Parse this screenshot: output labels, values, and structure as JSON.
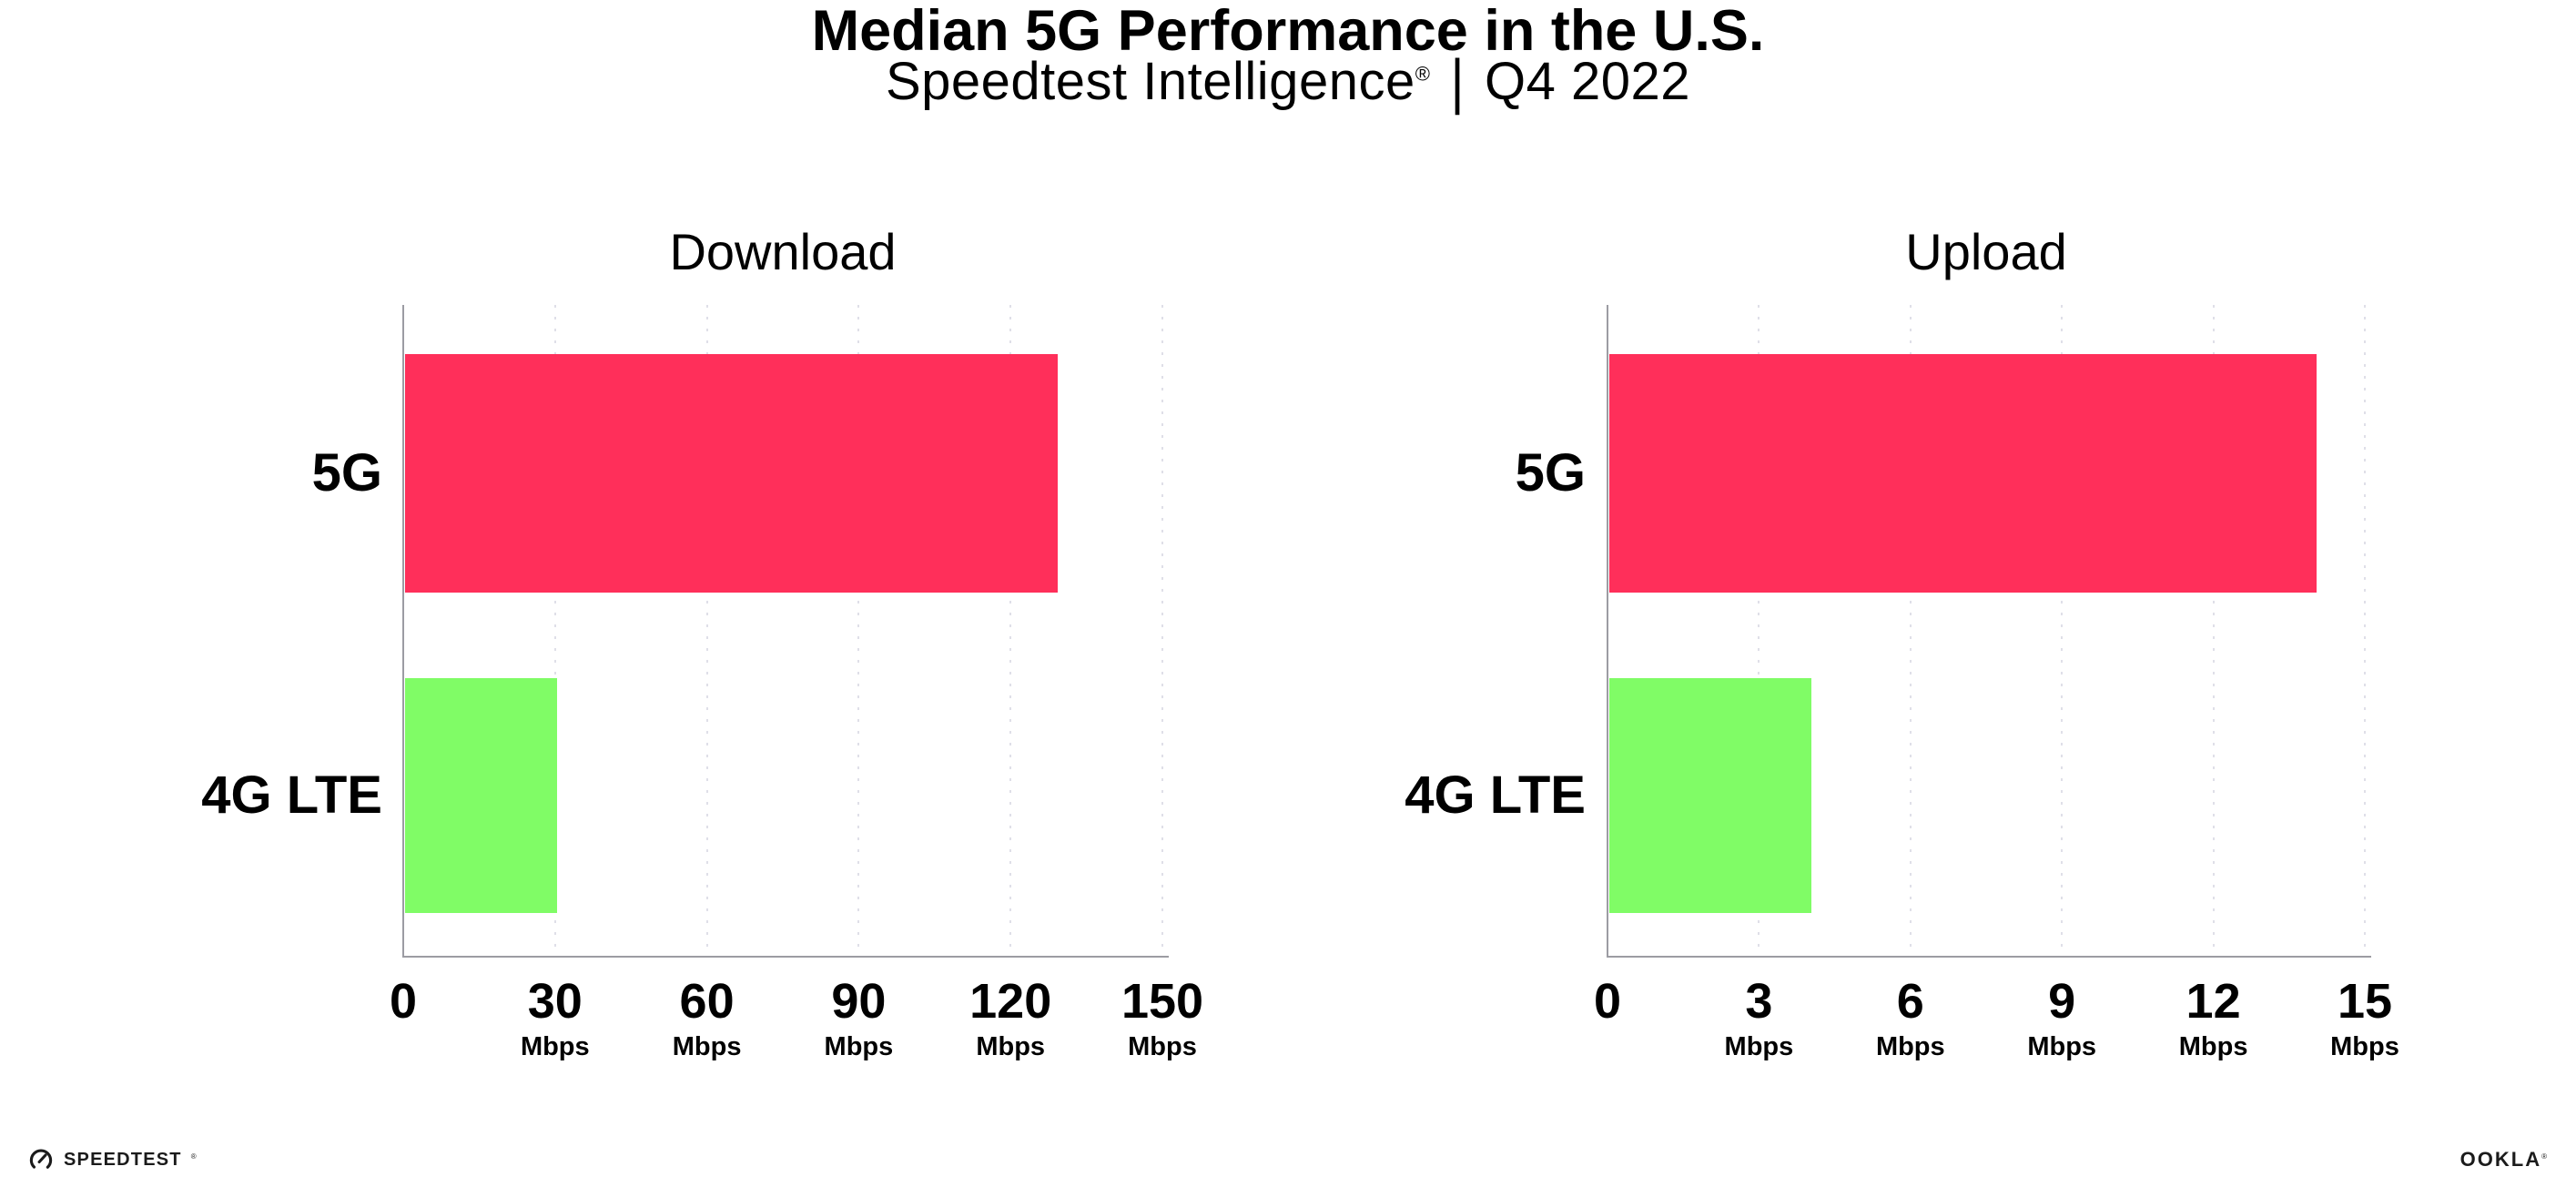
{
  "header": {
    "title": "Median 5G Performance in the U.S.",
    "subtitle": {
      "brand": "Speedtest Intelligence",
      "registered_mark": "®",
      "separator": "|",
      "period": "Q4 2022"
    }
  },
  "colors": {
    "bar_5g": "#FF2F5A",
    "bar_4g": "#80FC66",
    "axis": "#9C9CA3",
    "grid": "#DFDFE8",
    "text": "#000000",
    "background": "#FFFFFF"
  },
  "chart_data": [
    {
      "type": "bar",
      "orientation": "horizontal",
      "title": "Download",
      "categories": [
        "5G",
        "4G LTE"
      ],
      "values": [
        129,
        30
      ],
      "unit": "Mbps",
      "xlim": [
        0,
        150
      ],
      "xticks": [
        0,
        30,
        60,
        90,
        120,
        150
      ],
      "grid": "vertical-dotted",
      "legend": "none",
      "series_colors": {
        "5G": "#FF2F5A",
        "4G LTE": "#80FC66"
      }
    },
    {
      "type": "bar",
      "orientation": "horizontal",
      "title": "Upload",
      "categories": [
        "5G",
        "4G LTE"
      ],
      "values": [
        14,
        4
      ],
      "unit": "Mbps",
      "xlim": [
        0,
        15
      ],
      "xticks": [
        0,
        3,
        6,
        9,
        12,
        15
      ],
      "grid": "vertical-dotted",
      "legend": "none",
      "series_colors": {
        "5G": "#FF2F5A",
        "4G LTE": "#80FC66"
      }
    }
  ],
  "footer": {
    "speedtest_logo_text": "SPEEDTEST",
    "speedtest_trademark": "®",
    "ookla_logo_text": "OOKLA",
    "ookla_trademark": "®"
  }
}
